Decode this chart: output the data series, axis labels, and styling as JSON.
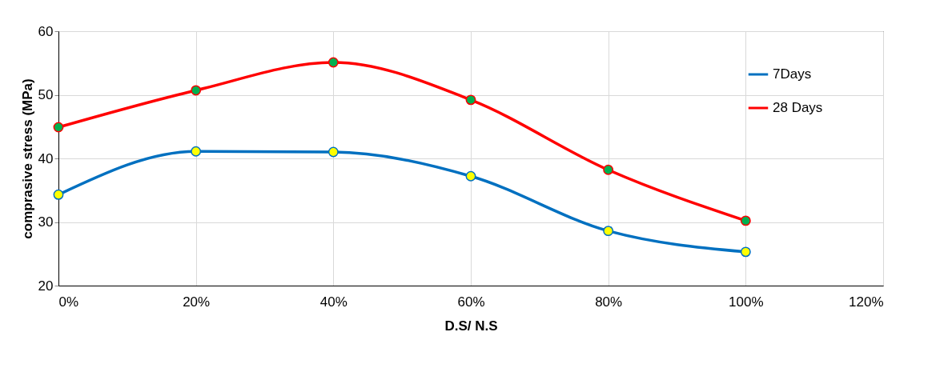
{
  "chart_data": {
    "type": "line",
    "xlabel": "D.S/ N.S",
    "ylabel": "comprasive stress (MPa)",
    "x": [
      0,
      20,
      40,
      60,
      80,
      100
    ],
    "series": [
      {
        "name": "7Days",
        "color": "#0070c0",
        "values": [
          34.3,
          41.1,
          41.0,
          37.2,
          28.6,
          25.3
        ]
      },
      {
        "name": "28 Days",
        "color": "#ff0000",
        "values": [
          44.9,
          50.7,
          55.1,
          49.2,
          38.2,
          30.2
        ]
      }
    ],
    "xlim": [
      0,
      120
    ],
    "xticks": [
      {
        "value": 0,
        "label": "0%"
      },
      {
        "value": 20,
        "label": "20%"
      },
      {
        "value": 40,
        "label": "40%"
      },
      {
        "value": 60,
        "label": "60%"
      },
      {
        "value": 80,
        "label": "80%"
      },
      {
        "value": 100,
        "label": "100%"
      },
      {
        "value": 120,
        "label": "120%"
      }
    ],
    "ylim": [
      20,
      60
    ],
    "yticks": [
      20,
      30,
      40,
      50,
      60
    ],
    "grid": true,
    "legend": "top right",
    "marker": "circle",
    "line_style": "solid"
  }
}
